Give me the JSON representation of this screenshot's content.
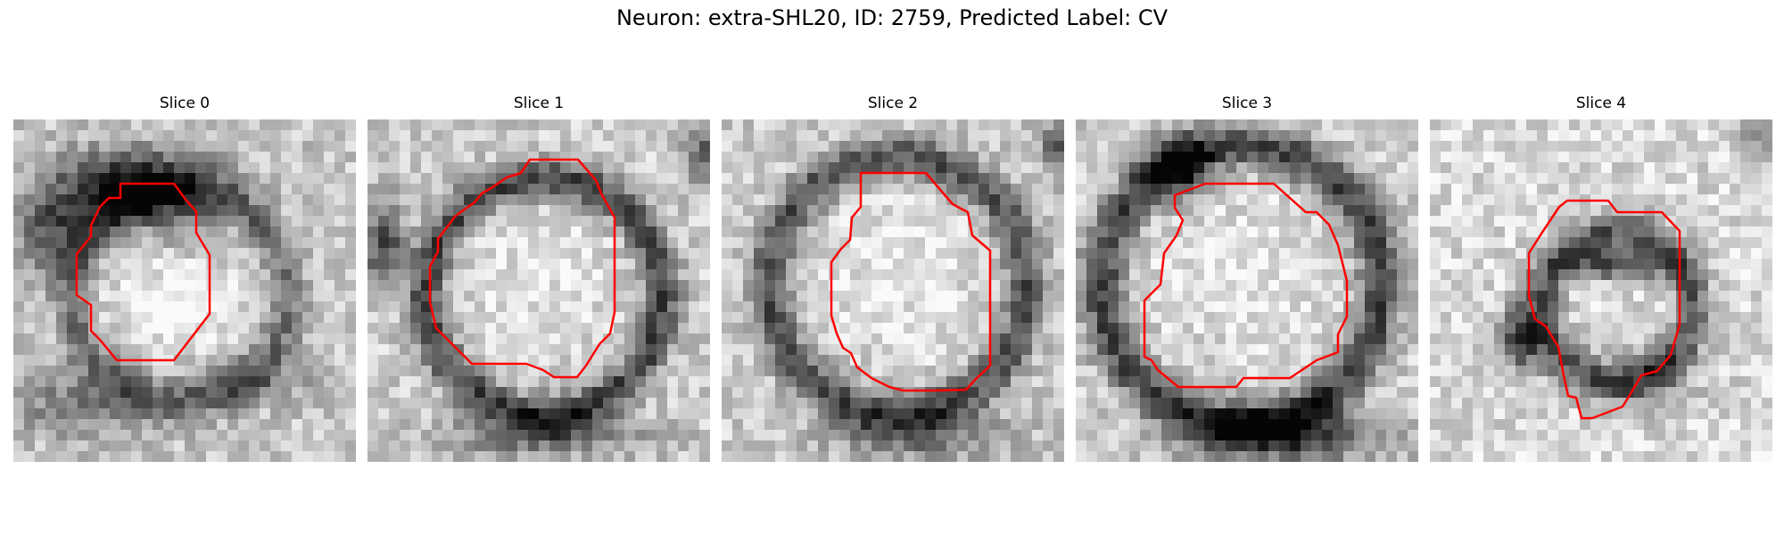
{
  "figure": {
    "title": "Neuron: extra-SHL20, ID: 2759, Predicted Label: CV"
  },
  "panels": [
    {
      "title": "Slice 0"
    },
    {
      "title": "Slice 1"
    },
    {
      "title": "Slice 2"
    },
    {
      "title": "Slice 3"
    },
    {
      "title": "Slice 4"
    }
  ],
  "style": {
    "contour_color": "#ff0000",
    "colormap": "grayscale"
  }
}
